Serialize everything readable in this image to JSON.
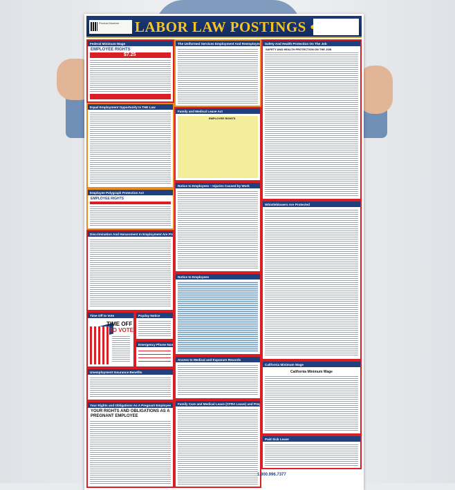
{
  "poster": {
    "title": "LABOR LAW POSTINGS • 2018",
    "product_label": "Product Number",
    "sections": {
      "federal_min_wage": {
        "title": "Federal Minimum Wage",
        "headline": "EMPLOYEE RIGHTS",
        "wage": "$7.25"
      },
      "userra": {
        "title": "The Uniformed Services Employment And Reemployment Rights Act"
      },
      "osha": {
        "title": "Safety And Health Protection On The Job",
        "headline": "SAFETY AND HEALTH PROTECTION ON THE JOB"
      },
      "eeo": {
        "title": "Equal Employment Opportunity Is THE Law"
      },
      "fmla": {
        "title": "Family and Medical Leave Act",
        "headline": "EMPLOYEE RIGHTS"
      },
      "polygraph": {
        "title": "Employee Polygraph Protection Act",
        "headline": "EMPLOYEE RIGHTS"
      },
      "injuries": {
        "title": "Notice to Employees – Injuries Caused by Work"
      },
      "whistleblowers": {
        "title": "Whistleblowers Are Protected"
      },
      "discrimination": {
        "title": "Discrimination And Harassment In Employment Are Prohibited By Law"
      },
      "notice_employees": {
        "title": "Notice to Employees"
      },
      "vote": {
        "title": "Time Off to Vote",
        "headline_1": "TIME OFF",
        "headline_2": "TO VOTE"
      },
      "payday": {
        "title": "Payday Notice"
      },
      "emergency": {
        "title": "Emergency Phone Numbers"
      },
      "unemployment": {
        "title": "Unemployment Insurance Benefits"
      },
      "medical_records": {
        "title": "Access to Medical and Exposure Records"
      },
      "pregnant": {
        "title": "Your Rights and Obligations As A Pregnant Employee",
        "headline": "YOUR RIGHTS AND OBLIGATIONS AS A PREGNANT EMPLOYEE"
      },
      "cfra": {
        "title": "Family Care and Medical Leave (CFRA Leave) and Pregnancy Disability Leave"
      },
      "ca_min_wage": {
        "title": "California Minimum Wage",
        "headline": "California Minimum Wage"
      },
      "sick_leave": {
        "title": "Paid Sick Leave"
      }
    },
    "footer_phone": "1.800.996.7377"
  },
  "colors": {
    "banner": "#1c3a78",
    "title_gold": "#f2c42a",
    "border_red": "#d81f26"
  }
}
